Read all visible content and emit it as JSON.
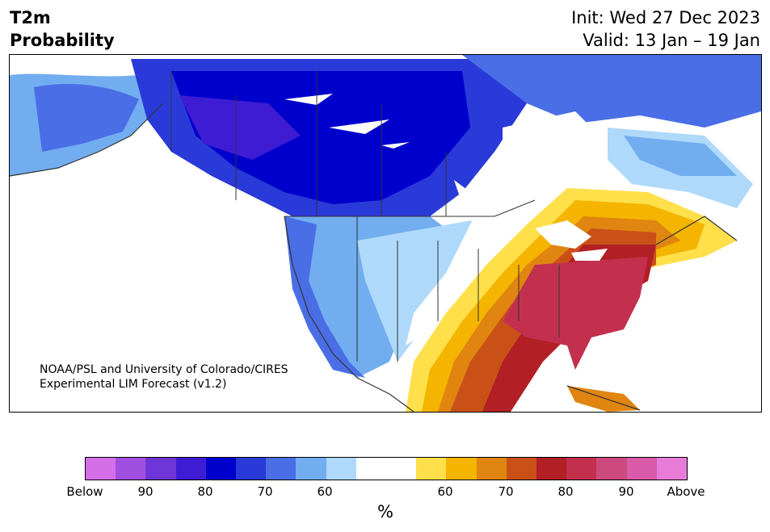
{
  "title": {
    "line1": "T2m",
    "line2": "Probability"
  },
  "forecast": {
    "init": "Init: Wed 27 Dec 2023",
    "valid": "Valid: 13 Jan – 19 Jan"
  },
  "credit": {
    "line1": "NOAA/PSL and University of Colorado/CIRES",
    "line2": "Experimental LIM Forecast (v1.2)"
  },
  "colorbar": {
    "label": "%",
    "colors": [
      "#d56fe8",
      "#a14fe0",
      "#6e36d8",
      "#3d1cd4",
      "#0000cd",
      "#2a3ad8",
      "#4a6ee6",
      "#72adf0",
      "#aed9fa",
      "#ffffff",
      "#ffffff",
      "#ffe04a",
      "#f4b400",
      "#df8510",
      "#c95118",
      "#b21f25",
      "#c3304e",
      "#cc4a7e",
      "#d95aa8",
      "#e77bd9"
    ],
    "ticks": [
      "Below",
      "90",
      "80",
      "70",
      "60",
      "60",
      "70",
      "80",
      "90",
      "Above"
    ]
  }
}
